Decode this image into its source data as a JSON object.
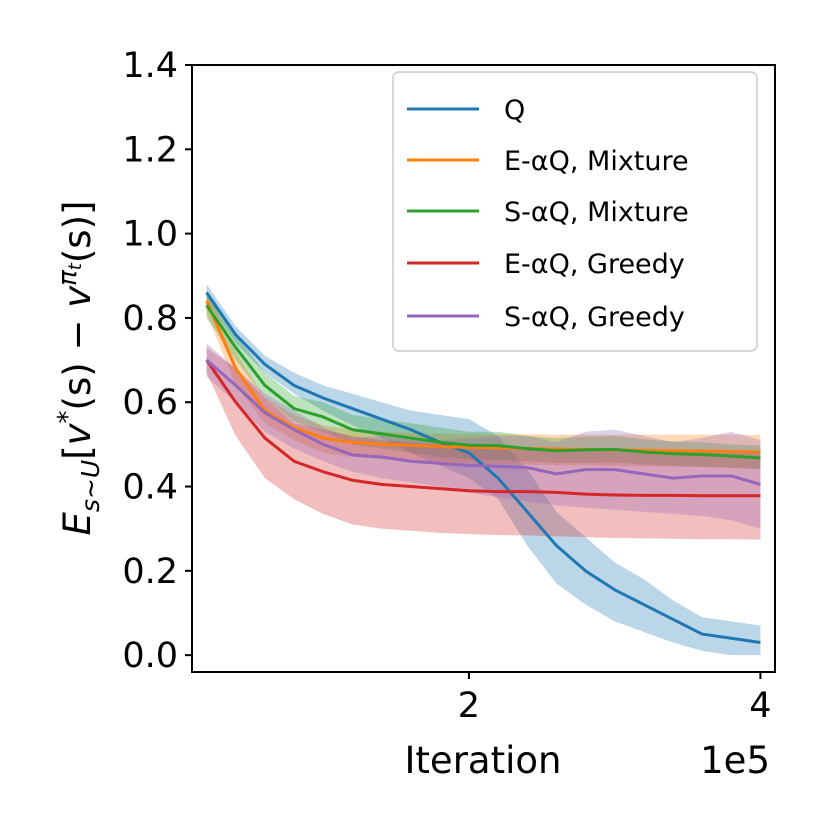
{
  "chart_data": {
    "type": "line",
    "title": "",
    "xlabel": "Iteration",
    "ylabel": "E_{s~U}[v*(s) − v^{πt}(s)]",
    "ylabel_parts": {
      "e": "E",
      "sub": "s∼U",
      "bracket_open": "[",
      "v1": "v",
      "star": "*",
      "mid": "(s) − ",
      "v2": "v",
      "pi": "π",
      "t": "t",
      "end": "(s)]"
    },
    "x_offset_text": "1e5",
    "xlim": [
      0.1,
      4.1
    ],
    "ylim": [
      -0.04,
      1.4
    ],
    "xticks": [
      {
        "value": 2,
        "label": "2"
      },
      {
        "value": 4,
        "label": "4"
      }
    ],
    "yticks": [
      {
        "value": 0.0,
        "label": "0.0"
      },
      {
        "value": 0.2,
        "label": "0.2"
      },
      {
        "value": 0.4,
        "label": "0.4"
      },
      {
        "value": 0.6,
        "label": "0.6"
      },
      {
        "value": 0.8,
        "label": "0.8"
      },
      {
        "value": 1.0,
        "label": "1.0"
      },
      {
        "value": 1.2,
        "label": "1.2"
      },
      {
        "value": 1.4,
        "label": "1.4"
      }
    ],
    "x": [
      0.2,
      0.4,
      0.6,
      0.8,
      1.0,
      1.2,
      1.4,
      1.6,
      1.8,
      2.0,
      2.2,
      2.4,
      2.6,
      2.8,
      3.0,
      3.2,
      3.4,
      3.6,
      3.8,
      4.0
    ],
    "legend_position": "upper right",
    "series": [
      {
        "name": "Q",
        "color": "#1f77b4",
        "values": [
          0.86,
          0.76,
          0.69,
          0.64,
          0.61,
          0.585,
          0.56,
          0.535,
          0.505,
          0.48,
          0.42,
          0.34,
          0.26,
          0.2,
          0.155,
          0.12,
          0.085,
          0.05,
          0.04,
          0.03
        ],
        "lower": [
          0.84,
          0.74,
          0.67,
          0.62,
          0.58,
          0.545,
          0.515,
          0.48,
          0.45,
          0.42,
          0.37,
          0.26,
          0.17,
          0.12,
          0.08,
          0.055,
          0.03,
          0.01,
          0.0,
          0.0
        ],
        "upper": [
          0.88,
          0.78,
          0.71,
          0.67,
          0.64,
          0.62,
          0.6,
          0.58,
          0.57,
          0.56,
          0.52,
          0.44,
          0.34,
          0.28,
          0.22,
          0.18,
          0.13,
          0.09,
          0.08,
          0.07
        ]
      },
      {
        "name": "E-αQ, Mixture",
        "color": "#ff7f0e",
        "values": [
          0.84,
          0.68,
          0.58,
          0.54,
          0.515,
          0.505,
          0.5,
          0.498,
          0.495,
          0.493,
          0.492,
          0.49,
          0.489,
          0.488,
          0.487,
          0.486,
          0.485,
          0.484,
          0.483,
          0.482
        ],
        "lower": [
          0.81,
          0.64,
          0.55,
          0.51,
          0.48,
          0.47,
          0.465,
          0.46,
          0.457,
          0.455,
          0.453,
          0.452,
          0.451,
          0.45,
          0.449,
          0.448,
          0.447,
          0.446,
          0.445,
          0.444
        ],
        "upper": [
          0.87,
          0.72,
          0.61,
          0.57,
          0.545,
          0.535,
          0.53,
          0.527,
          0.525,
          0.524,
          0.524,
          0.524,
          0.523,
          0.523,
          0.523,
          0.523,
          0.523,
          0.523,
          0.523,
          0.522
        ]
      },
      {
        "name": "S-αQ, Mixture",
        "color": "#2ca02c",
        "values": [
          0.83,
          0.73,
          0.64,
          0.585,
          0.565,
          0.535,
          0.525,
          0.515,
          0.505,
          0.498,
          0.497,
          0.49,
          0.485,
          0.487,
          0.488,
          0.482,
          0.478,
          0.476,
          0.472,
          0.468
        ],
        "lower": [
          0.8,
          0.7,
          0.61,
          0.555,
          0.53,
          0.5,
          0.49,
          0.48,
          0.47,
          0.465,
          0.463,
          0.46,
          0.456,
          0.456,
          0.457,
          0.452,
          0.449,
          0.447,
          0.444,
          0.44
        ],
        "upper": [
          0.86,
          0.76,
          0.67,
          0.615,
          0.6,
          0.57,
          0.56,
          0.55,
          0.54,
          0.53,
          0.53,
          0.52,
          0.515,
          0.518,
          0.52,
          0.512,
          0.507,
          0.505,
          0.5,
          0.497
        ]
      },
      {
        "name": "E-αQ, Greedy",
        "color": "#d62728",
        "values": [
          0.7,
          0.6,
          0.515,
          0.46,
          0.435,
          0.415,
          0.405,
          0.4,
          0.395,
          0.39,
          0.388,
          0.388,
          0.386,
          0.382,
          0.38,
          0.379,
          0.379,
          0.378,
          0.378,
          0.378
        ],
        "lower": [
          0.67,
          0.52,
          0.42,
          0.37,
          0.335,
          0.31,
          0.3,
          0.295,
          0.29,
          0.287,
          0.285,
          0.284,
          0.282,
          0.28,
          0.278,
          0.277,
          0.276,
          0.275,
          0.275,
          0.274
        ],
        "upper": [
          0.73,
          0.68,
          0.61,
          0.55,
          0.535,
          0.52,
          0.51,
          0.505,
          0.5,
          0.495,
          0.493,
          0.493,
          0.49,
          0.487,
          0.485,
          0.484,
          0.483,
          0.482,
          0.482,
          0.482
        ]
      },
      {
        "name": "S-αQ, Greedy",
        "color": "#9467bd",
        "values": [
          0.7,
          0.64,
          0.575,
          0.535,
          0.5,
          0.475,
          0.47,
          0.46,
          0.455,
          0.45,
          0.448,
          0.445,
          0.43,
          0.44,
          0.44,
          0.43,
          0.42,
          0.425,
          0.425,
          0.405
        ],
        "lower": [
          0.66,
          0.6,
          0.53,
          0.49,
          0.46,
          0.435,
          0.42,
          0.41,
          0.4,
          0.385,
          0.375,
          0.365,
          0.355,
          0.35,
          0.345,
          0.34,
          0.335,
          0.33,
          0.32,
          0.3
        ],
        "upper": [
          0.74,
          0.68,
          0.62,
          0.58,
          0.54,
          0.515,
          0.52,
          0.51,
          0.51,
          0.515,
          0.52,
          0.52,
          0.505,
          0.53,
          0.535,
          0.52,
          0.505,
          0.515,
          0.53,
          0.51
        ]
      }
    ]
  }
}
